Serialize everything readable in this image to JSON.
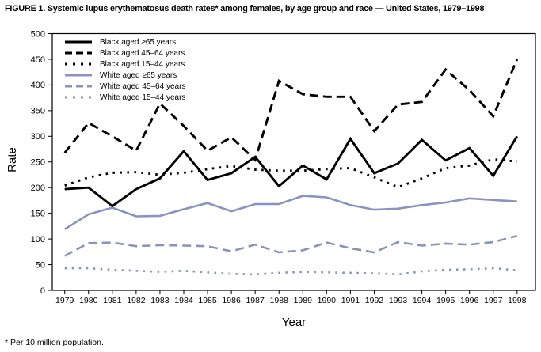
{
  "title": "FIGURE 1. Systemic lupus erythematosus death rates* among females, by age group and race — United States, 1979–1998",
  "footnote": "* Per 10 million population.",
  "chart_data": {
    "type": "line",
    "title": "Systemic lupus erythematosus death rates among females, by age group and race — United States, 1979–1998",
    "xlabel": "Year",
    "ylabel": "Rate",
    "x": [
      1979,
      1980,
      1981,
      1982,
      1983,
      1984,
      1985,
      1986,
      1987,
      1988,
      1989,
      1990,
      1991,
      1992,
      1993,
      1994,
      1995,
      1996,
      1997,
      1998
    ],
    "ylim": [
      0,
      500
    ],
    "ytick_interval": 50,
    "grid": false,
    "legend_position": "top-left",
    "colors": {
      "black_series": "#000000",
      "white_series": "#8893BF"
    },
    "series": [
      {
        "name": "Black aged ≥65 years",
        "color": "#000000",
        "style": "solid",
        "values": [
          197,
          200,
          164,
          197,
          218,
          271,
          215,
          228,
          260,
          203,
          243,
          216,
          295,
          228,
          247,
          293,
          253,
          277,
          223,
          300
        ]
      },
      {
        "name": "Black aged 45–64 years",
        "color": "#000000",
        "style": "dashed",
        "values": [
          268,
          326,
          300,
          272,
          364,
          320,
          272,
          298,
          254,
          408,
          382,
          377,
          377,
          310,
          362,
          367,
          430,
          390,
          339,
          450
        ]
      },
      {
        "name": "Black aged 15–44 years",
        "color": "#000000",
        "style": "dotted",
        "values": [
          204,
          220,
          229,
          230,
          225,
          229,
          236,
          242,
          235,
          233,
          233,
          236,
          238,
          220,
          201,
          218,
          238,
          243,
          255,
          251
        ]
      },
      {
        "name": "White aged ≥65 years",
        "color": "#8893BF",
        "style": "solid",
        "values": [
          119,
          148,
          161,
          144,
          145,
          158,
          170,
          154,
          168,
          168,
          184,
          181,
          166,
          157,
          159,
          166,
          171,
          179,
          176,
          173
        ]
      },
      {
        "name": "White aged 45–64 years",
        "color": "#8893BF",
        "style": "dashed",
        "values": [
          67,
          92,
          93,
          86,
          88,
          87,
          86,
          76,
          89,
          74,
          78,
          93,
          82,
          74,
          94,
          87,
          91,
          89,
          94,
          106
        ]
      },
      {
        "name": "White aged 15–44 years",
        "color": "#8893BF",
        "style": "dotted",
        "values": [
          43,
          43,
          40,
          38,
          36,
          38,
          35,
          32,
          31,
          34,
          36,
          35,
          34,
          33,
          31,
          37,
          40,
          41,
          43,
          39
        ]
      }
    ]
  }
}
